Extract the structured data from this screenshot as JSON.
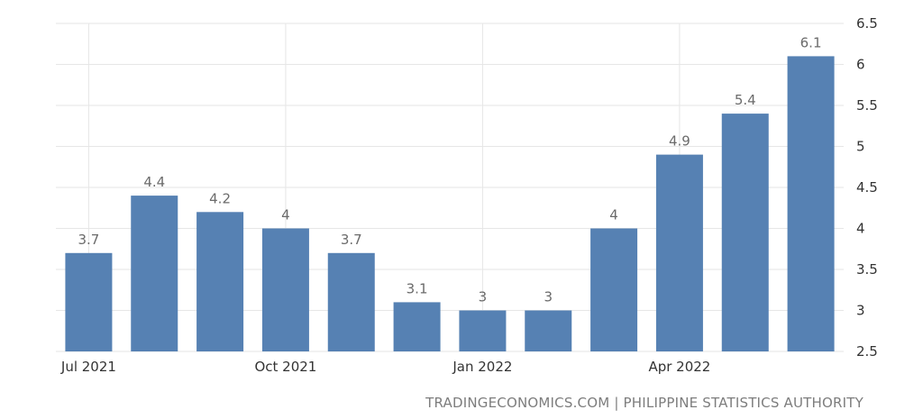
{
  "chart_data": {
    "type": "bar",
    "categories": [
      "Jul 2021",
      "Aug 2021",
      "Sep 2021",
      "Oct 2021",
      "Nov 2021",
      "Dec 2021",
      "Jan 2022",
      "Feb 2022",
      "Mar 2022",
      "Apr 2022",
      "May 2022",
      "Jun 2022"
    ],
    "values": [
      3.7,
      4.4,
      4.2,
      4,
      3.7,
      3.1,
      3,
      3,
      4,
      4.9,
      5.4,
      6.1
    ],
    "value_labels": [
      "3.7",
      "4.4",
      "4.2",
      "4",
      "3.7",
      "3.1",
      "3",
      "3",
      "4",
      "4.9",
      "5.4",
      "6.1"
    ],
    "x_tick_labels": [
      {
        "category_index": 0,
        "label": "Jul 2021"
      },
      {
        "category_index": 3,
        "label": "Oct 2021"
      },
      {
        "category_index": 6,
        "label": "Jan 2022"
      },
      {
        "category_index": 9,
        "label": "Apr 2022"
      }
    ],
    "y_ticks": [
      "6.5",
      "6",
      "5.5",
      "5",
      "4.5",
      "4",
      "3.5",
      "3",
      "2.5"
    ],
    "ylim": [
      2.5,
      6.5
    ],
    "y_axis_side": "right",
    "grid": true,
    "bar_color": "#5681b3",
    "title": "",
    "xlabel": "",
    "ylabel": ""
  },
  "source": "TRADINGECONOMICS.COM | PHILIPPINE STATISTICS AUTHORITY"
}
